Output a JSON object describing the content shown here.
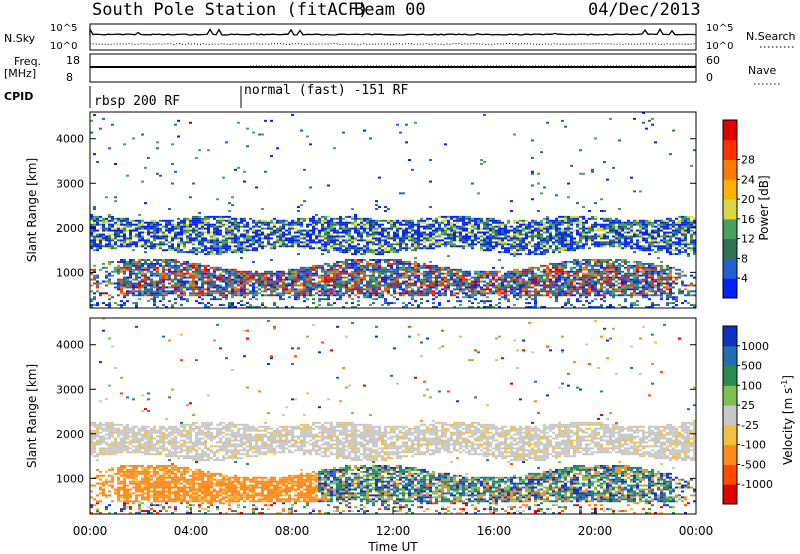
{
  "header": {
    "station": "South Pole Station (fitACF)",
    "beam": "Beam 00",
    "date": "04/Dec/2013"
  },
  "top_panels": {
    "nsky_label": "N.Sky",
    "nsearch_label": "N.Search",
    "freq_label": "Freq.",
    "freq_unit": "[MHz]",
    "nave_label": "Nave",
    "cpid_label": "CPID",
    "nsky_ticks": [
      "10^5",
      "10^0"
    ],
    "nsearch_ticks": [
      "10^5",
      "10^0"
    ],
    "freq_ticks": [
      "18",
      "8"
    ],
    "nave_ticks": [
      "60",
      "0"
    ],
    "cpid_segments": [
      {
        "label": "rbsp 200 RF",
        "start_hour": 0
      },
      {
        "label": "normal (fast) -151 RF",
        "start_hour": 6
      }
    ]
  },
  "chart_data": [
    {
      "type": "heatmap",
      "panel": "power",
      "ylabel": "Slant Range [km]",
      "ylim": [
        200,
        4600
      ],
      "xlim": [
        0,
        24
      ],
      "yticks": [
        1000,
        2000,
        3000,
        4000
      ],
      "colorbar_label": "Power [dB]",
      "colorbar_ticks": [
        "4",
        "8",
        "12",
        "16",
        "20",
        "24",
        "28"
      ],
      "colorbar_colors": [
        "#0022ff",
        "#1f5fd0",
        "#2f6f55",
        "#4aa060",
        "#d8d840",
        "#ffb000",
        "#ff7a00",
        "#ff3000",
        "#e00000"
      ],
      "bands": [
        {
          "range_km": [
            1500,
            2200
          ],
          "hours": [
            0,
            24
          ],
          "dominant": "green/blue"
        },
        {
          "range_km": [
            500,
            1100
          ],
          "hours": [
            0,
            24
          ],
          "dominant": "green/orange/red"
        }
      ]
    },
    {
      "type": "heatmap",
      "panel": "velocity",
      "ylabel": "Slant Range [km]",
      "xlabel": "Time UT",
      "ylim": [
        200,
        4600
      ],
      "xlim": [
        0,
        24
      ],
      "yticks": [
        1000,
        2000,
        3000,
        4000
      ],
      "xticks": [
        "00:00",
        "04:00",
        "08:00",
        "12:00",
        "16:00",
        "20:00",
        "00:00"
      ],
      "colorbar_label": "Velocity [m s",
      "colorbar_label_sup": "-1",
      "colorbar_label_end": "]",
      "colorbar_ticks": [
        "1000",
        "500",
        "100",
        "25",
        "-25",
        "-100",
        "-500",
        "-1000"
      ],
      "colorbar_colors": [
        "#1030c0",
        "#1f6fb0",
        "#2a8a50",
        "#80c050",
        "#c8c8c8",
        "#f0c040",
        "#ff8a1a",
        "#ff4a00",
        "#e00000"
      ],
      "bands": [
        {
          "range_km": [
            1600,
            2300
          ],
          "hours": [
            0,
            24
          ],
          "dominant": "grey"
        },
        {
          "range_km": [
            400,
            1300
          ],
          "hours": [
            1,
            9
          ],
          "dominant": "orange"
        },
        {
          "range_km": [
            400,
            1300
          ],
          "hours": [
            9,
            24
          ],
          "dominant": "green/blue"
        }
      ]
    }
  ]
}
